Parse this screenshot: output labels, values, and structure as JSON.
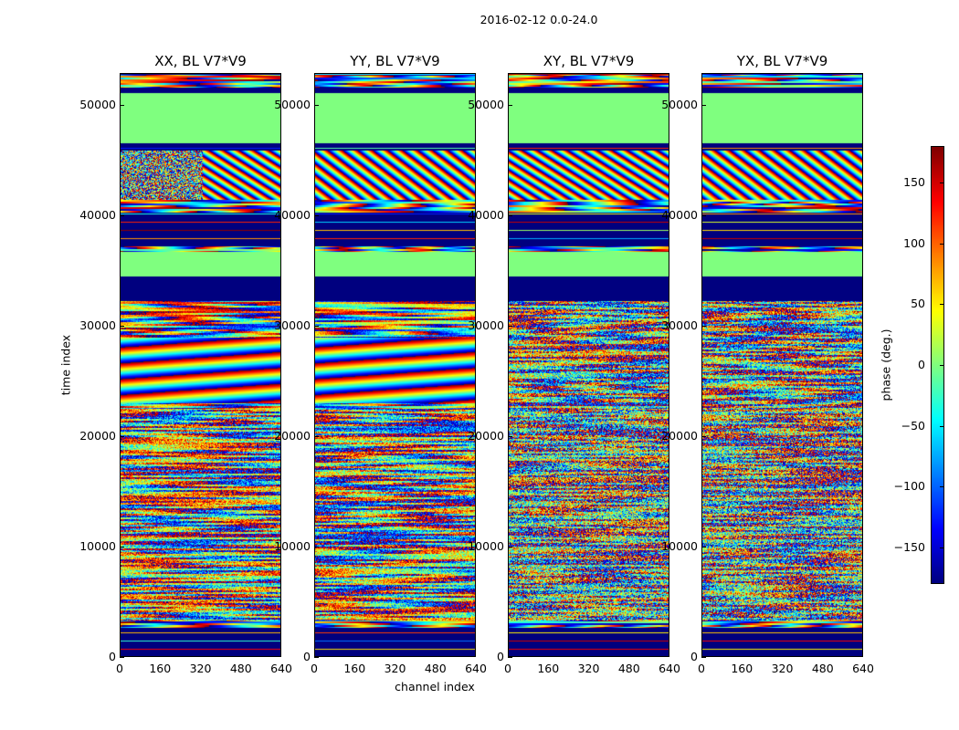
{
  "chart_data": {
    "type": "heatmap",
    "suptitle": "2016-02-12 0.0-24.0",
    "panels": [
      {
        "title": "XX, BL V7*V9"
      },
      {
        "title": "YY, BL V7*V9"
      },
      {
        "title": "XY, BL V7*V9"
      },
      {
        "title": "YX, BL V7*V9"
      }
    ],
    "xlabel": "channel index",
    "ylabel": "time index",
    "xlim": [
      0,
      640
    ],
    "ylim": [
      0,
      52900
    ],
    "xticks": [
      "0",
      "160",
      "320",
      "480",
      "640"
    ],
    "xtick_values": [
      0,
      160,
      320,
      480,
      640
    ],
    "yticks": [
      "0",
      "10000",
      "20000",
      "30000",
      "40000",
      "50000"
    ],
    "ytick_values": [
      0,
      10000,
      20000,
      30000,
      40000,
      50000
    ],
    "colorbar": {
      "label": "phase (deg.)",
      "clim": [
        -180,
        180
      ],
      "colormap": "jet",
      "ticks": [
        "150",
        "100",
        "50",
        "0",
        "−50",
        "−100",
        "−150"
      ],
      "tick_values": [
        150,
        100,
        50,
        0,
        -50,
        -100,
        -150
      ]
    },
    "bands": [
      {
        "t": [
          0,
          2600
        ],
        "mode": "const_stripes",
        "value": -180
      },
      {
        "t": [
          2600,
          3300
        ],
        "mode": "hband"
      },
      {
        "t": [
          3300,
          22500
        ],
        "mode": "noise"
      },
      {
        "t": [
          22500,
          32300
        ],
        "mode": "fringe"
      },
      {
        "t": [
          32300,
          34500
        ],
        "mode": "const",
        "value": 180
      },
      {
        "t": [
          34500,
          36800
        ],
        "mode": "const",
        "value": 0
      },
      {
        "t": [
          36800,
          37300
        ],
        "mode": "hband"
      },
      {
        "t": [
          37300,
          40300
        ],
        "mode": "const_stripes",
        "value": 180
      },
      {
        "t": [
          40300,
          41500
        ],
        "mode": "hband"
      },
      {
        "t": [
          41500,
          46000
        ],
        "mode": "diag"
      },
      {
        "t": [
          46000,
          46600
        ],
        "mode": "const_stripes",
        "value": -180
      },
      {
        "t": [
          46600,
          51200
        ],
        "mode": "const",
        "value": 0
      },
      {
        "t": [
          51200,
          51700
        ],
        "mode": "const",
        "value": -180
      },
      {
        "t": [
          51700,
          52900
        ],
        "mode": "hband"
      }
    ]
  }
}
